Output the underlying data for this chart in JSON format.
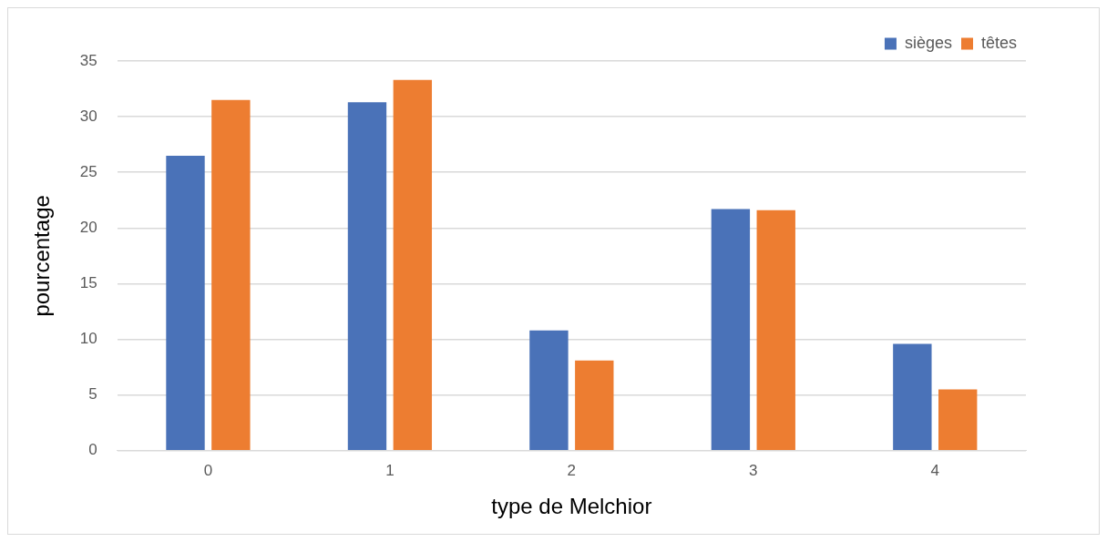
{
  "chart_data": {
    "type": "bar",
    "xlabel": "type de Melchior",
    "ylabel": "pourcentage",
    "categories": [
      "0",
      "1",
      "2",
      "3",
      "4"
    ],
    "series": [
      {
        "name": "sièges",
        "color": "#4a72b8",
        "values": [
          26.5,
          31.3,
          10.8,
          21.7,
          9.6
        ]
      },
      {
        "name": "têtes",
        "color": "#ed7d31",
        "values": [
          31.5,
          33.3,
          8.1,
          21.6,
          5.5
        ]
      }
    ],
    "ylim": [
      0,
      35
    ],
    "yticks": [
      0,
      5,
      10,
      15,
      20,
      25,
      30,
      35
    ],
    "grid": "y",
    "legend": "top right"
  }
}
